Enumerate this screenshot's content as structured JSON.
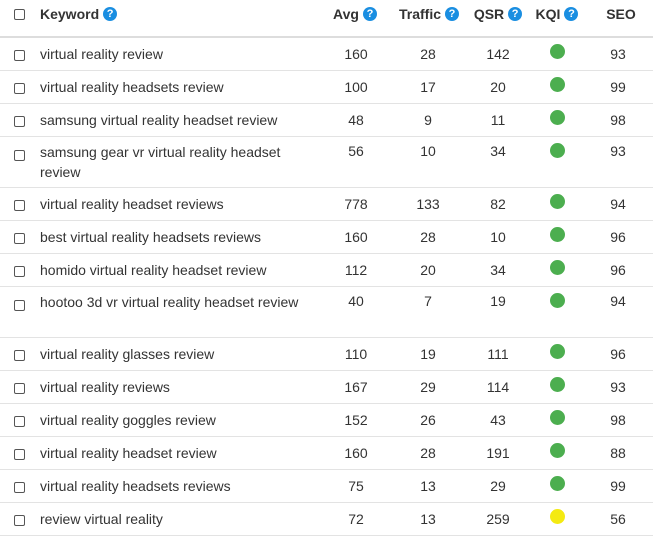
{
  "header": {
    "keyword": "Keyword",
    "avg": "Avg",
    "traffic": "Traffic",
    "qsr": "QSR",
    "kqi": "KQI",
    "seo": "SEO",
    "help_glyph": "?"
  },
  "colors": {
    "kqi_green": "#4cae4f",
    "kqi_yellow": "#f4ea12",
    "help_blue": "#1a8ee1"
  },
  "rows": [
    {
      "keyword": "virtual reality review",
      "avg": "160",
      "traffic": "28",
      "qsr": "142",
      "kqi": "green",
      "seo": "93"
    },
    {
      "keyword": "virtual reality headsets review",
      "avg": "100",
      "traffic": "17",
      "qsr": "20",
      "kqi": "green",
      "seo": "99"
    },
    {
      "keyword": "samsung virtual reality headset review",
      "avg": "48",
      "traffic": "9",
      "qsr": "11",
      "kqi": "green",
      "seo": "98"
    },
    {
      "keyword": "samsung gear vr virtual reality headset review",
      "avg": "56",
      "traffic": "10",
      "qsr": "34",
      "kqi": "green",
      "seo": "93"
    },
    {
      "keyword": "virtual reality headset reviews",
      "avg": "778",
      "traffic": "133",
      "qsr": "82",
      "kqi": "green",
      "seo": "94"
    },
    {
      "keyword": "best virtual reality headsets reviews",
      "avg": "160",
      "traffic": "28",
      "qsr": "10",
      "kqi": "green",
      "seo": "96"
    },
    {
      "keyword": "homido virtual reality headset review",
      "avg": "112",
      "traffic": "20",
      "qsr": "34",
      "kqi": "green",
      "seo": "96"
    },
    {
      "keyword": "hootoo 3d vr virtual reality headset review",
      "avg": "40",
      "traffic": "7",
      "qsr": "19",
      "kqi": "green",
      "seo": "94"
    },
    {
      "keyword": "virtual reality glasses review",
      "avg": "110",
      "traffic": "19",
      "qsr": "111",
      "kqi": "green",
      "seo": "96"
    },
    {
      "keyword": "virtual reality reviews",
      "avg": "167",
      "traffic": "29",
      "qsr": "114",
      "kqi": "green",
      "seo": "93"
    },
    {
      "keyword": "virtual reality goggles review",
      "avg": "152",
      "traffic": "26",
      "qsr": "43",
      "kqi": "green",
      "seo": "98"
    },
    {
      "keyword": "virtual reality headset review",
      "avg": "160",
      "traffic": "28",
      "qsr": "191",
      "kqi": "green",
      "seo": "88"
    },
    {
      "keyword": "virtual reality headsets reviews",
      "avg": "75",
      "traffic": "13",
      "qsr": "29",
      "kqi": "green",
      "seo": "99"
    },
    {
      "keyword": "review virtual reality",
      "avg": "72",
      "traffic": "13",
      "qsr": "259",
      "kqi": "yellow",
      "seo": "56"
    }
  ]
}
